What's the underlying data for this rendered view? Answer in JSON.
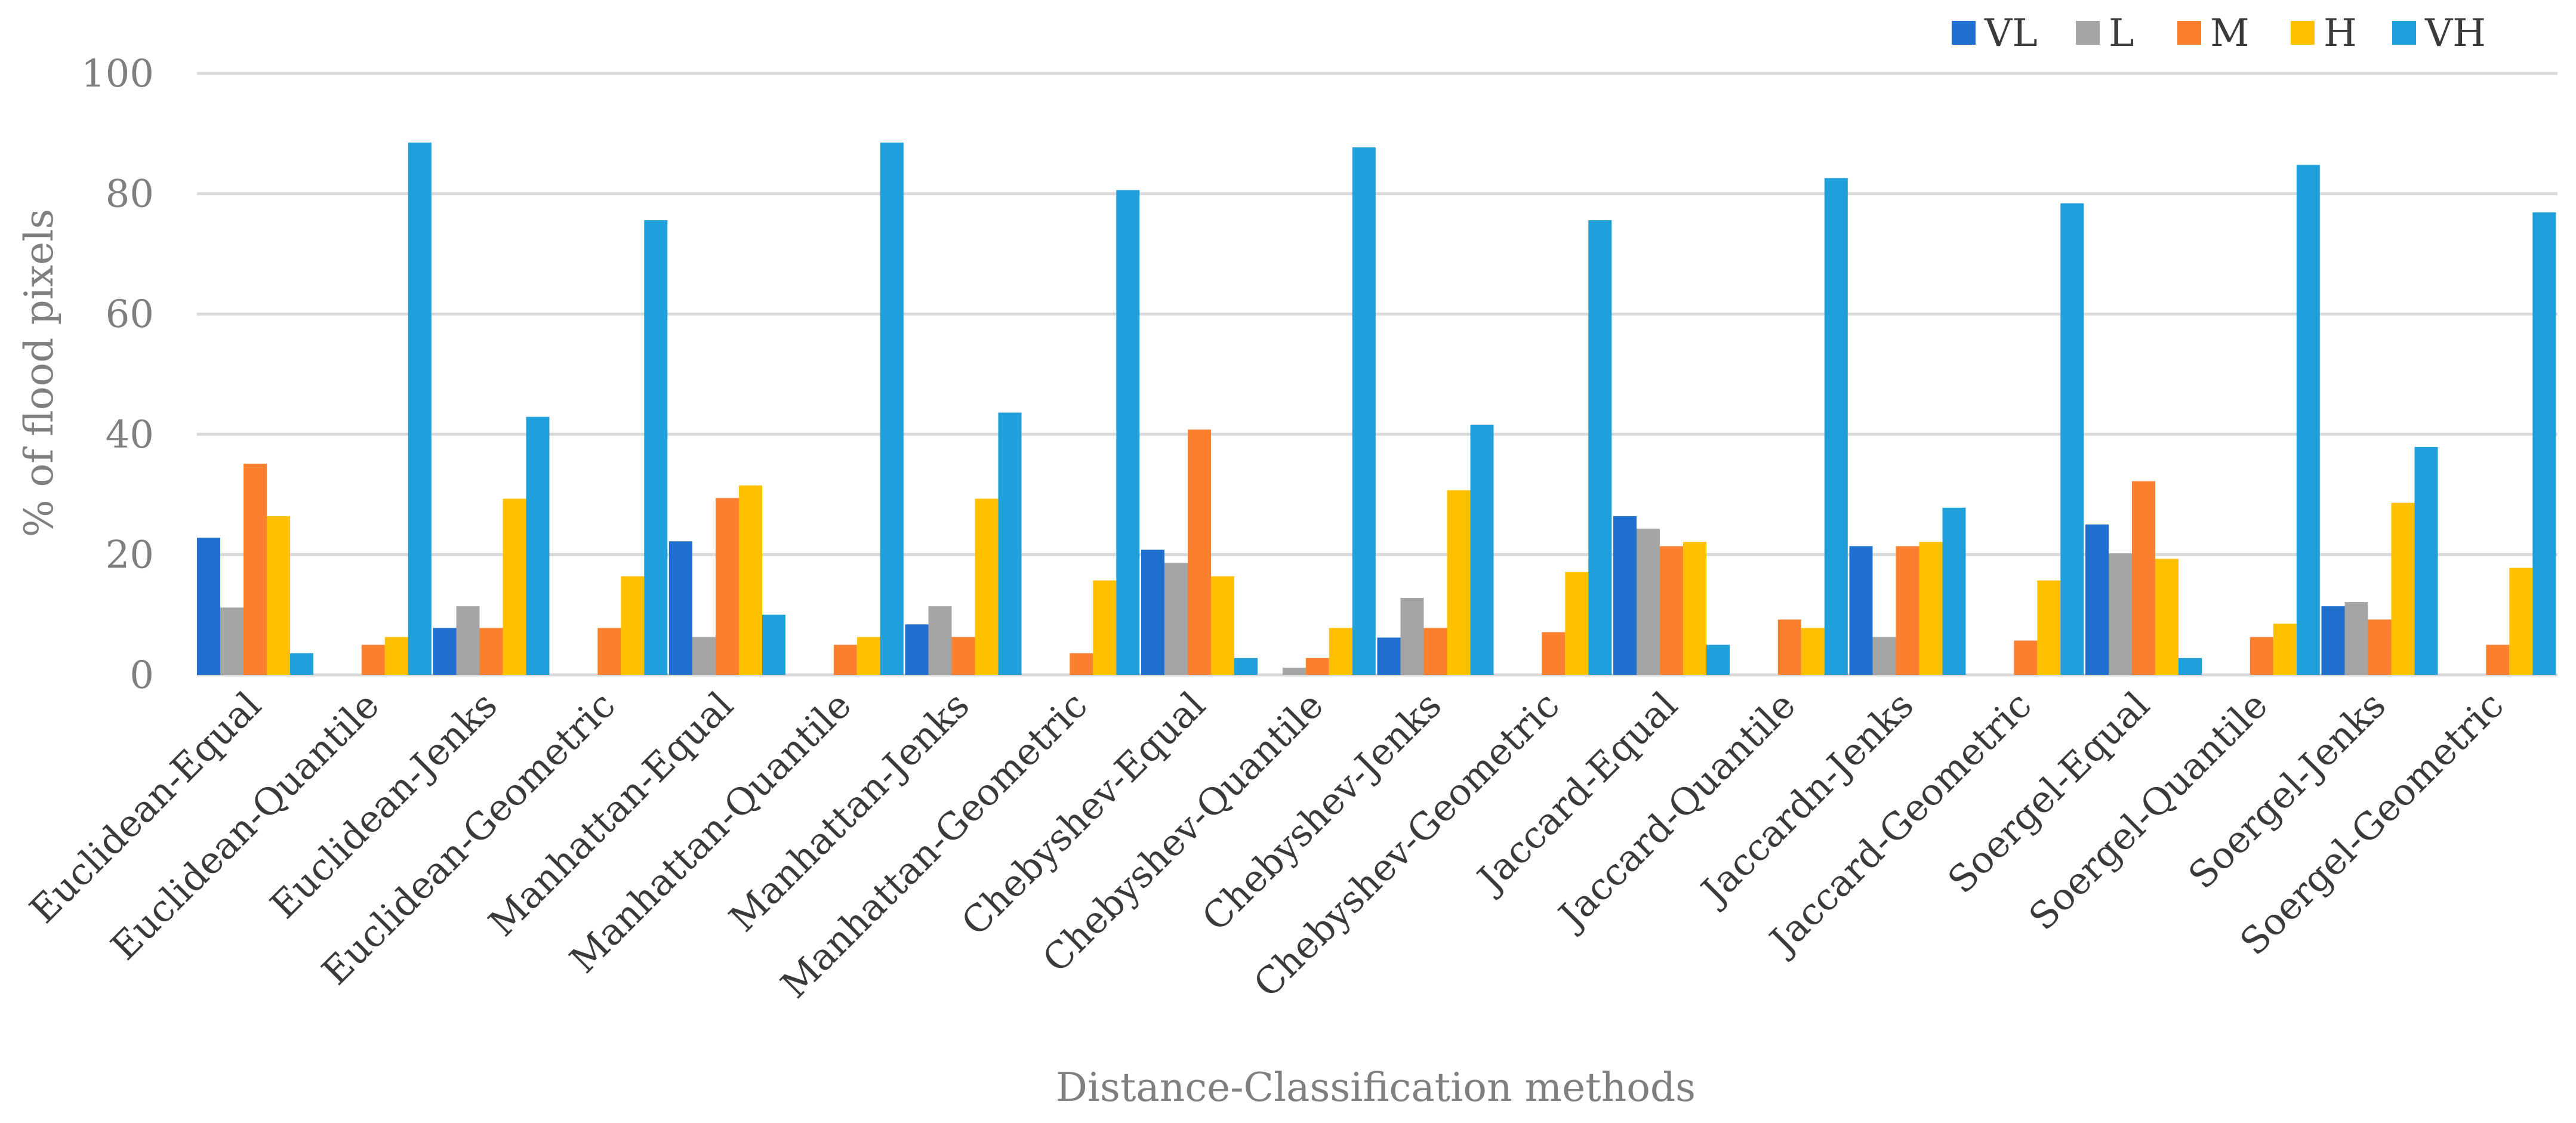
{
  "chart_data": {
    "type": "bar",
    "title": "",
    "xlabel": "Distance-Classification methods",
    "ylabel": "% of flood pixels",
    "ylim": [
      0,
      100
    ],
    "yticks": [
      0,
      20,
      40,
      60,
      80,
      100
    ],
    "grid": true,
    "legend_position": "top-right",
    "categories": [
      "Euclidean-Equal",
      "Euclidean-Quantile",
      "Euclidean-Jenks",
      "Euclidean-Geometric",
      "Manhattan-Equal",
      "Manhattan-Quantile",
      "Manhattan-Jenks",
      "Manhattan-Geometric",
      "Chebyshev-Equal",
      "Chebyshev-Quantile",
      "Chebyshev-Jenks",
      "Chebyshev-Geometric",
      "Jaccard-Equal",
      "Jaccard-Quantile",
      "Jaccardn-Jenks",
      "Jaccard-Geometric",
      "Soergel-Equal",
      "Soergel-Quantile",
      "Soergel-Jenks",
      "Soergel-Geometric"
    ],
    "series": [
      {
        "name": "VL",
        "color": "#1f6fcf",
        "values": [
          22.8,
          0,
          7.8,
          0,
          22.2,
          0,
          8.4,
          0,
          20.8,
          0,
          6.2,
          0,
          26.4,
          0,
          21.4,
          0,
          25.0,
          0,
          11.4,
          0
        ]
      },
      {
        "name": "L",
        "color": "#a5a5a5",
        "values": [
          11.2,
          0,
          11.4,
          0,
          6.3,
          0,
          11.4,
          0,
          18.6,
          1.2,
          12.8,
          0,
          24.3,
          0,
          6.3,
          0,
          20.2,
          0,
          12.1,
          0
        ]
      },
      {
        "name": "M",
        "color": "#fd7f30",
        "values": [
          35.1,
          5.0,
          7.8,
          7.8,
          29.4,
          5.0,
          6.3,
          3.6,
          40.8,
          2.8,
          7.8,
          7.1,
          21.4,
          9.2,
          21.4,
          5.7,
          32.2,
          6.3,
          9.2,
          5.0
        ]
      },
      {
        "name": "H",
        "color": "#ffc000",
        "values": [
          26.4,
          6.3,
          29.3,
          16.4,
          31.5,
          6.3,
          29.3,
          15.7,
          16.4,
          7.8,
          30.7,
          17.1,
          22.1,
          7.8,
          22.1,
          15.7,
          19.3,
          8.5,
          28.6,
          17.8
        ]
      },
      {
        "name": "VH",
        "color": "#20a0da",
        "values": [
          3.6,
          88.5,
          42.9,
          75.6,
          10.0,
          88.5,
          43.6,
          80.6,
          2.8,
          87.7,
          41.6,
          75.6,
          5.0,
          82.6,
          27.8,
          78.4,
          2.8,
          84.8,
          37.9,
          76.9
        ]
      }
    ]
  }
}
